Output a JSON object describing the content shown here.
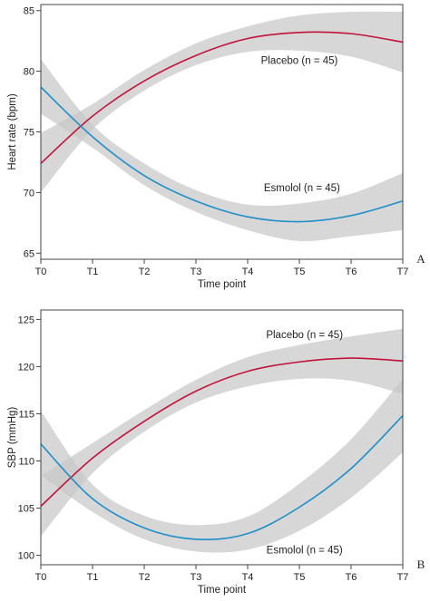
{
  "chart_data": [
    {
      "type": "line",
      "panel_label": "A",
      "xlabel": "Time point",
      "ylabel": "Heart rate (bpm)",
      "categories": [
        "T0",
        "T1",
        "T2",
        "T3",
        "T4",
        "T5",
        "T6",
        "T7"
      ],
      "ylim": [
        64.5,
        85.5
      ],
      "yticks": [
        65,
        70,
        75,
        80,
        85
      ],
      "grid": false,
      "series": [
        {
          "name": "Placebo (n = 45)",
          "color": "#c0143c",
          "values": [
            72.4,
            76.3,
            79.2,
            81.3,
            82.7,
            83.2,
            83.1,
            82.4
          ],
          "lower": [
            70.0,
            75.2,
            78.4,
            80.5,
            81.6,
            81.7,
            81.2,
            79.9
          ],
          "upper": [
            74.9,
            77.3,
            80.1,
            82.3,
            83.7,
            84.6,
            84.9,
            84.9
          ]
        },
        {
          "name": "Esmolol (n = 45)",
          "color": "#1f8fc8",
          "values": [
            78.7,
            74.6,
            71.4,
            69.3,
            68.0,
            67.6,
            68.1,
            69.3
          ],
          "lower": [
            76.5,
            73.7,
            70.6,
            68.4,
            66.9,
            66.0,
            66.4,
            66.9
          ],
          "upper": [
            81.0,
            75.6,
            72.4,
            70.2,
            69.0,
            69.1,
            69.9,
            71.6
          ]
        }
      ],
      "annotations": [
        {
          "text": "Placebo (n = 45)",
          "x": 5.0,
          "y": 80.6
        },
        {
          "text": "Esmolol (n = 45)",
          "x": 5.05,
          "y": 70.1
        }
      ]
    },
    {
      "type": "line",
      "panel_label": "B",
      "xlabel": "Time point",
      "ylabel": "SBP (mmHg)",
      "categories": [
        "T0",
        "T1",
        "T2",
        "T3",
        "T4",
        "T5",
        "T6",
        "T7"
      ],
      "ylim": [
        99.0,
        126.0
      ],
      "yticks": [
        100,
        105,
        110,
        115,
        120,
        125
      ],
      "grid": false,
      "series": [
        {
          "name": "Placebo (n = 45)",
          "color": "#c0143c",
          "values": [
            105.2,
            110.3,
            114.2,
            117.4,
            119.5,
            120.5,
            120.9,
            120.6
          ],
          "lower": [
            102.0,
            108.7,
            113.1,
            116.2,
            117.9,
            118.7,
            118.5,
            117.1
          ],
          "upper": [
            108.4,
            111.9,
            115.4,
            118.6,
            121.0,
            122.3,
            123.2,
            124.0
          ]
        },
        {
          "name": "Esmolol (n = 45)",
          "color": "#1f8fc8",
          "values": [
            111.8,
            106.0,
            102.9,
            101.7,
            102.3,
            105.1,
            109.2,
            114.8
          ],
          "lower": [
            108.5,
            104.6,
            101.7,
            100.4,
            100.6,
            102.6,
            106.1,
            110.9
          ],
          "upper": [
            115.3,
            107.5,
            104.2,
            103.2,
            104.1,
            107.6,
            112.3,
            118.7
          ]
        }
      ],
      "annotations": [
        {
          "text": "Placebo (n = 45)",
          "x": 5.1,
          "y": 123.0
        },
        {
          "text": "Esmolol (n = 45)",
          "x": 5.1,
          "y": 100.2
        }
      ]
    }
  ]
}
